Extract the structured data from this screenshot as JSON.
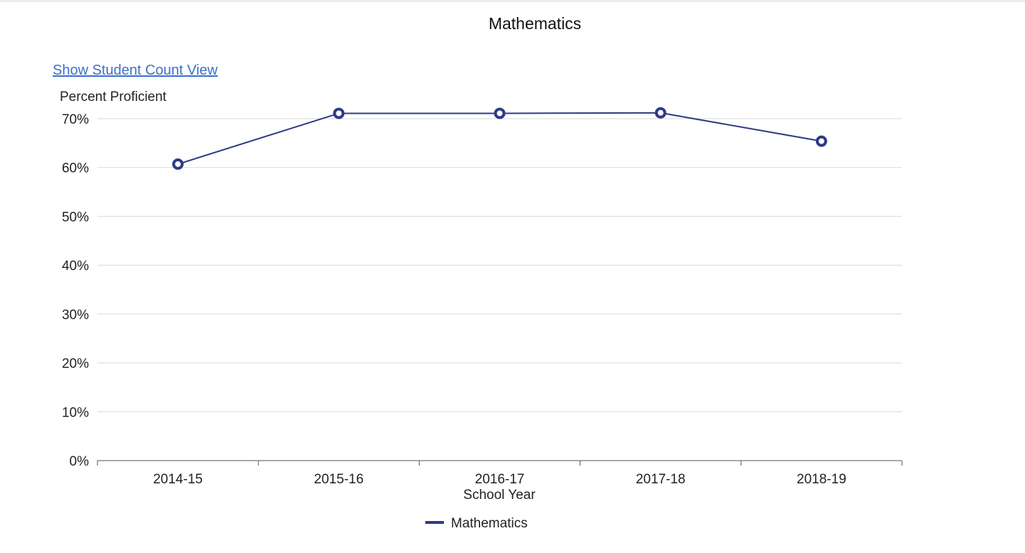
{
  "header": {
    "view_link_label": "Show Student Count View"
  },
  "chart_data": {
    "type": "line",
    "title": "Mathematics",
    "ylabel": "Percent Proficient",
    "xlabel": "School Year",
    "categories": [
      "2014-15",
      "2015-16",
      "2016-17",
      "2017-18",
      "2018-19"
    ],
    "series": [
      {
        "name": "Mathematics",
        "values": [
          60.7,
          71.1,
          71.1,
          71.2,
          65.4
        ],
        "color": "#2e3a87"
      }
    ],
    "ylim": [
      0,
      70
    ],
    "yticks": [
      0,
      10,
      20,
      30,
      40,
      50,
      60,
      70
    ],
    "ytick_format": "%",
    "grid": true,
    "legend_position": "bottom-center"
  }
}
